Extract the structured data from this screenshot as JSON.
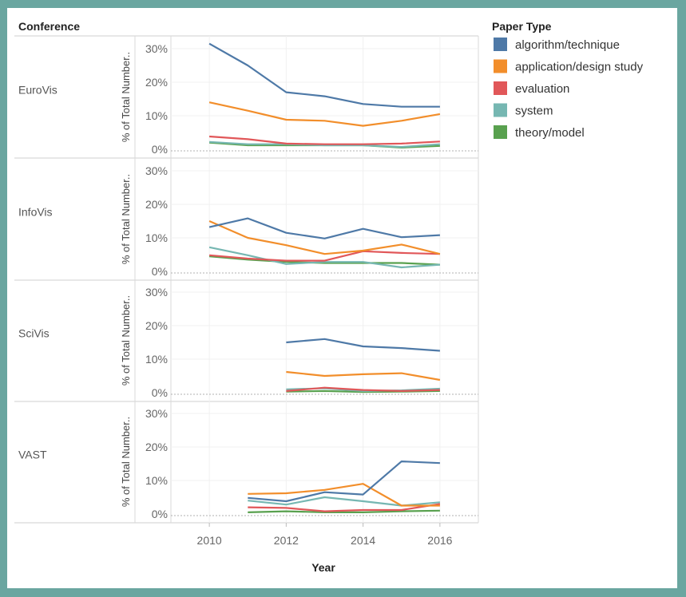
{
  "chart_data": {
    "type": "line",
    "row_header": "Conference",
    "xlabel": "Year",
    "ylabel": "% of Total Number..",
    "x_ticks": [
      2010,
      2012,
      2014,
      2016
    ],
    "y_ticks": [
      "30%",
      "20%",
      "10%",
      "0%"
    ],
    "ylim": [
      0,
      33
    ],
    "xlim": [
      2009,
      2017
    ],
    "legend": {
      "title": "Paper Type",
      "placement": "right",
      "entries": [
        {
          "name": "algorithm/technique",
          "color": "#4e79a7"
        },
        {
          "name": "application/design study",
          "color": "#f28e2b"
        },
        {
          "name": "evaluation",
          "color": "#e15759"
        },
        {
          "name": "system",
          "color": "#76b7b2"
        },
        {
          "name": "theory/model",
          "color": "#59a14f"
        }
      ]
    },
    "panels": [
      {
        "label": "EuroVis",
        "series": [
          {
            "name": "algorithm/technique",
            "x": [
              2010,
              2011,
              2012,
              2013,
              2014,
              2015,
              2016
            ],
            "y": [
              31.5,
              25,
              17,
              15.8,
              13.5,
              12.7,
              12.7
            ]
          },
          {
            "name": "application/design study",
            "x": [
              2010,
              2011,
              2012,
              2013,
              2014,
              2015,
              2016
            ],
            "y": [
              14,
              11.5,
              8.8,
              8.5,
              7.0,
              8.5,
              10.5
            ]
          },
          {
            "name": "evaluation",
            "x": [
              2010,
              2011,
              2012,
              2013,
              2014,
              2015,
              2016
            ],
            "y": [
              3.8,
              3.0,
              1.7,
              1.5,
              1.5,
              1.7,
              2.3
            ]
          },
          {
            "name": "system",
            "x": [
              2010,
              2011,
              2012,
              2013,
              2014,
              2015,
              2016
            ],
            "y": [
              2.2,
              1.5,
              1.5,
              1.2,
              1.2,
              0.7,
              1.5
            ]
          },
          {
            "name": "theory/model",
            "x": [
              2010,
              2011,
              2012,
              2013,
              2014,
              2015,
              2016
            ],
            "y": [
              2.0,
              1.2,
              1.2,
              1.2,
              1.2,
              0.5,
              1.0
            ]
          }
        ]
      },
      {
        "label": "InfoVis",
        "series": [
          {
            "name": "algorithm/technique",
            "x": [
              2010,
              2011,
              2012,
              2013,
              2014,
              2015,
              2016
            ],
            "y": [
              13.2,
              15.8,
              11.5,
              9.8,
              12.7,
              10.2,
              10.8
            ]
          },
          {
            "name": "application/design study",
            "x": [
              2010,
              2011,
              2012,
              2013,
              2014,
              2015,
              2016
            ],
            "y": [
              15.0,
              10.0,
              7.8,
              5.2,
              6.2,
              8.0,
              5.2
            ]
          },
          {
            "name": "evaluation",
            "x": [
              2010,
              2011,
              2012,
              2013,
              2014,
              2015,
              2016
            ],
            "y": [
              4.8,
              3.8,
              3.2,
              3.2,
              6.0,
              5.5,
              5.2
            ]
          },
          {
            "name": "system",
            "x": [
              2010,
              2011,
              2012,
              2013,
              2014,
              2015,
              2016
            ],
            "y": [
              7.2,
              4.8,
              2.2,
              2.8,
              2.8,
              1.2,
              2.0
            ]
          },
          {
            "name": "theory/model",
            "x": [
              2010,
              2011,
              2012,
              2013,
              2014,
              2015,
              2016
            ],
            "y": [
              4.5,
              3.5,
              2.8,
              2.5,
              2.5,
              2.5,
              2.0
            ]
          }
        ]
      },
      {
        "label": "SciVis",
        "series": [
          {
            "name": "algorithm/technique",
            "x": [
              2012,
              2013,
              2014,
              2015,
              2016
            ],
            "y": [
              15.0,
              16.0,
              13.8,
              13.3,
              12.5
            ]
          },
          {
            "name": "application/design study",
            "x": [
              2012,
              2013,
              2014,
              2015,
              2016
            ],
            "y": [
              6.2,
              5.0,
              5.5,
              5.8,
              3.8
            ]
          },
          {
            "name": "evaluation",
            "x": [
              2012,
              2013,
              2014,
              2015,
              2016
            ],
            "y": [
              0.5,
              1.5,
              0.8,
              0.5,
              0.8
            ]
          },
          {
            "name": "system",
            "x": [
              2012,
              2013,
              2014,
              2015,
              2016
            ],
            "y": [
              1.0,
              1.3,
              0.5,
              0.7,
              1.2
            ]
          },
          {
            "name": "theory/model",
            "x": [
              2012,
              2013,
              2014,
              2015,
              2016
            ],
            "y": [
              0.3,
              0.5,
              0.2,
              0.3,
              0.5
            ]
          }
        ]
      },
      {
        "label": "VAST",
        "series": [
          {
            "name": "algorithm/technique",
            "x": [
              2011,
              2012,
              2013,
              2014,
              2015,
              2016
            ],
            "y": [
              4.8,
              3.8,
              6.5,
              5.8,
              15.7,
              15.2
            ]
          },
          {
            "name": "application/design study",
            "x": [
              2011,
              2012,
              2013,
              2014,
              2015,
              2016
            ],
            "y": [
              6.0,
              6.2,
              7.2,
              9.0,
              2.5,
              2.5
            ]
          },
          {
            "name": "evaluation",
            "x": [
              2011,
              2012,
              2013,
              2014,
              2015,
              2016
            ],
            "y": [
              2.0,
              1.8,
              0.8,
              1.2,
              1.2,
              3.0
            ]
          },
          {
            "name": "system",
            "x": [
              2011,
              2012,
              2013,
              2014,
              2015,
              2016
            ],
            "y": [
              4.0,
              2.8,
              5.0,
              3.8,
              2.5,
              3.5
            ]
          },
          {
            "name": "theory/model",
            "x": [
              2011,
              2012,
              2013,
              2014,
              2015,
              2016
            ],
            "y": [
              0.5,
              0.8,
              0.5,
              0.5,
              0.8,
              1.0
            ]
          }
        ]
      }
    ]
  }
}
